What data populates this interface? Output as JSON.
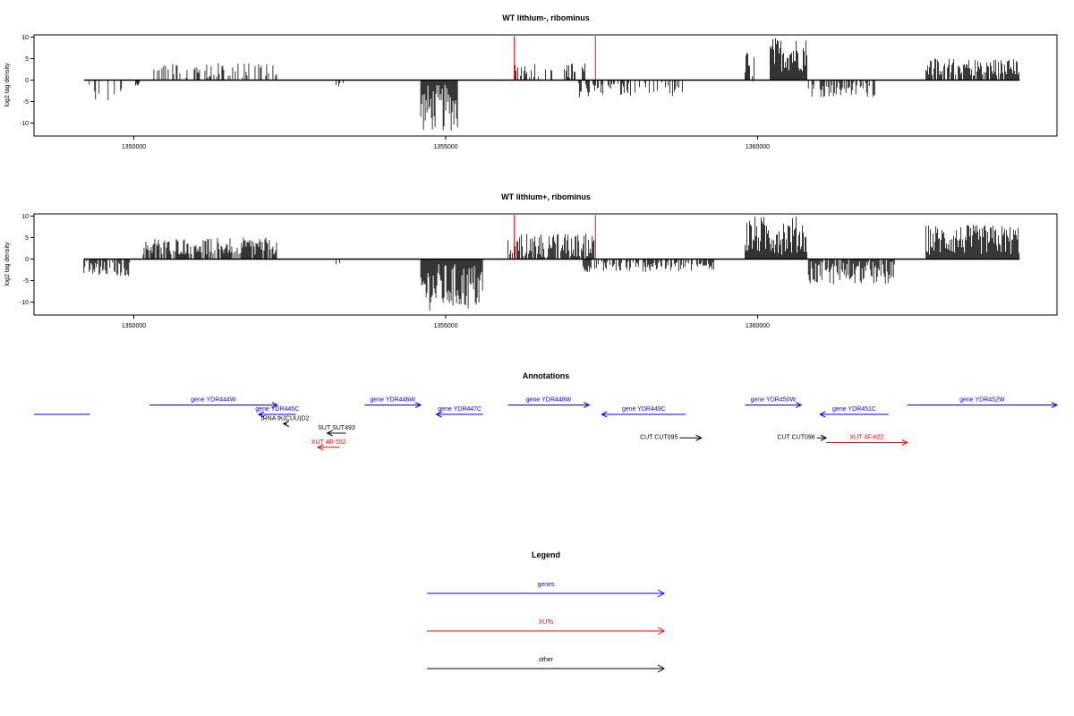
{
  "chart_data": [
    {
      "type": "bar",
      "title": "WT lithium-, ribominus",
      "ylabel": "log2 tag density",
      "xlim": [
        1348400,
        1364800
      ],
      "ylim": [
        -13,
        10.5
      ],
      "yticks": [
        -10,
        -5,
        0,
        5,
        10
      ],
      "yticklabels": [
        "-10",
        "-5",
        "0",
        "5",
        "10"
      ],
      "xticks": [
        1350000,
        1355000,
        1360000
      ],
      "xticklabels": [
        "1350000",
        "1355000",
        "1360000"
      ],
      "data_range": [
        1349200,
        1364200
      ],
      "marker_positions": [
        1356100,
        1357400
      ],
      "marker_color": "#ff0000",
      "regions": [
        {
          "from": 1349200,
          "to": 1349900,
          "min": -5.5,
          "max": -0.5,
          "density": 0.25
        },
        {
          "from": 1350000,
          "to": 1350100,
          "min": -1.5,
          "max": -0.5,
          "density": 0.3
        },
        {
          "from": 1350250,
          "to": 1352300,
          "min": 0.5,
          "max": 4,
          "density": 0.4
        },
        {
          "from": 1353200,
          "to": 1353400,
          "min": -1.5,
          "max": -0.5,
          "density": 0.3
        },
        {
          "from": 1354600,
          "to": 1355200,
          "min": -12,
          "max": -1,
          "density": 1.0
        },
        {
          "from": 1356100,
          "to": 1357300,
          "min": 0.5,
          "max": 4,
          "density": 0.35
        },
        {
          "from": 1357100,
          "to": 1358800,
          "min": -4,
          "max": -0.5,
          "density": 0.45
        },
        {
          "from": 1359800,
          "to": 1359950,
          "min": -1,
          "max": 7,
          "density": 0.8
        },
        {
          "from": 1360200,
          "to": 1360800,
          "min": 2,
          "max": 10,
          "density": 1.0
        },
        {
          "from": 1360800,
          "to": 1361900,
          "min": -4,
          "max": -0.5,
          "density": 0.5
        },
        {
          "from": 1362700,
          "to": 1364200,
          "min": 1,
          "max": 5,
          "density": 0.8
        }
      ]
    },
    {
      "type": "bar",
      "title": "WT lithium+, ribominus",
      "ylabel": "log2 tag density",
      "xlim": [
        1348400,
        1364800
      ],
      "ylim": [
        -13,
        10.5
      ],
      "yticks": [
        -10,
        -5,
        0,
        5,
        10
      ],
      "yticklabels": [
        "-10",
        "-5",
        "0",
        "5",
        "10"
      ],
      "xticks": [
        1350000,
        1355000,
        1360000
      ],
      "xticklabels": [
        "1350000",
        "1355000",
        "1360000"
      ],
      "data_range": [
        1349200,
        1364200
      ],
      "marker_positions": [
        1356100,
        1357400
      ],
      "marker_color": "#ff0000",
      "regions": [
        {
          "from": 1349200,
          "to": 1349950,
          "min": -4,
          "max": -0.5,
          "density": 0.8
        },
        {
          "from": 1350150,
          "to": 1352300,
          "min": 1,
          "max": 5,
          "density": 0.8
        },
        {
          "from": 1353200,
          "to": 1353400,
          "min": -2,
          "max": -0.5,
          "density": 0.3
        },
        {
          "from": 1354600,
          "to": 1355600,
          "min": -12,
          "max": -1,
          "density": 1.0
        },
        {
          "from": 1356000,
          "to": 1357400,
          "min": 0.5,
          "max": 6,
          "density": 0.8
        },
        {
          "from": 1357200,
          "to": 1359300,
          "min": -3,
          "max": -0.5,
          "density": 0.6
        },
        {
          "from": 1359800,
          "to": 1360800,
          "min": 1,
          "max": 10,
          "density": 1.0
        },
        {
          "from": 1360800,
          "to": 1362200,
          "min": -6,
          "max": -0.5,
          "density": 0.9
        },
        {
          "from": 1362700,
          "to": 1364200,
          "min": 1,
          "max": 8,
          "density": 1.0
        }
      ]
    }
  ],
  "annotations": {
    "title": "Annotations",
    "items": [
      {
        "label": "",
        "from": 1349300,
        "to": 1348400,
        "row": 0,
        "color": "#0000ff",
        "label_pos": "none"
      },
      {
        "label": "gene YDR444W",
        "from": 1350250,
        "to": 1352300,
        "row": -1,
        "color": "#0000ff",
        "label_pos": "above"
      },
      {
        "label": "gene YDR445C",
        "from": 1352600,
        "to": 1352000,
        "row": 0,
        "color": "#0000ff",
        "label_pos": "above"
      },
      {
        "label": "gene YDR446W",
        "from": 1353700,
        "to": 1354600,
        "row": -1,
        "color": "#0000ff",
        "label_pos": "above"
      },
      {
        "label": "gene YDR447C",
        "from": 1355600,
        "to": 1354850,
        "row": 0,
        "color": "#0000ff",
        "label_pos": "above"
      },
      {
        "label": "gene YDR448W",
        "from": 1356000,
        "to": 1357300,
        "row": -1,
        "color": "#0000ff",
        "label_pos": "above"
      },
      {
        "label": "gene YDR449C",
        "from": 1358850,
        "to": 1357500,
        "row": 0,
        "color": "#0000ff",
        "label_pos": "above"
      },
      {
        "label": "gene YDR450W",
        "from": 1359800,
        "to": 1360700,
        "row": -1,
        "color": "#0000ff",
        "label_pos": "above"
      },
      {
        "label": "gene YDR451C",
        "from": 1362100,
        "to": 1361000,
        "row": 0,
        "color": "#0000ff",
        "label_pos": "above"
      },
      {
        "label": "gene YDR452W",
        "from": 1362400,
        "to": 1364800,
        "row": -1,
        "color": "#0000ff",
        "label_pos": "above"
      },
      {
        "label": "tRNA tK(CUU)D2",
        "from": 1352450,
        "to": 1352400,
        "row": 1,
        "color": "#000000",
        "label_pos": "above"
      },
      {
        "label": "SUT SUT493",
        "from": 1353400,
        "to": 1353100,
        "row": 2,
        "color": "#000000",
        "label_pos": "above"
      },
      {
        "label": "CUT CUT095",
        "from": 1358750,
        "to": 1359100,
        "row": 2.5,
        "color": "#000000",
        "label_pos": "left"
      },
      {
        "label": "CUT CUT096",
        "from": 1360950,
        "to": 1361100,
        "row": 2.5,
        "color": "#000000",
        "label_pos": "left"
      },
      {
        "label": "XUT 4R-552",
        "from": 1353300,
        "to": 1352950,
        "row": 3.5,
        "color": "#ff0000",
        "label_pos": "above"
      },
      {
        "label": "XUT 4F-622",
        "from": 1361100,
        "to": 1362400,
        "row": 3,
        "color": "#ff0000",
        "label_pos": "above"
      }
    ]
  },
  "legend": {
    "title": "Legend",
    "entries": [
      {
        "label": "genes",
        "color": "#0000ff"
      },
      {
        "label": "XUTs",
        "color": "#ff0000"
      },
      {
        "label": "other",
        "color": "#000000"
      }
    ]
  }
}
